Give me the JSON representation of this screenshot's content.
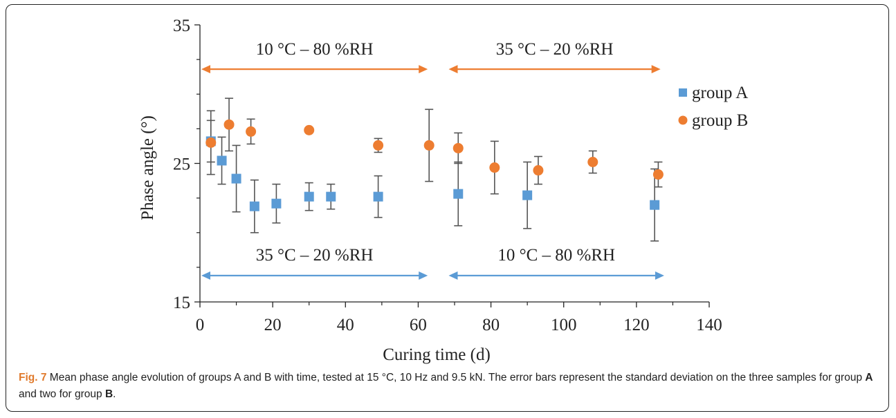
{
  "chart_data": {
    "type": "scatter",
    "xlabel": "Curing time (d)",
    "ylabel": "Phase angle (°)",
    "xlim": [
      0,
      140
    ],
    "ylim": [
      15,
      35
    ],
    "x_ticks": [
      "0",
      "20",
      "40",
      "60",
      "80",
      "100",
      "120",
      "140"
    ],
    "y_ticks": [
      "15",
      "25",
      "35"
    ],
    "grid": false,
    "legend_position": "right",
    "series": [
      {
        "name": "group A",
        "color": "#5b9bd5",
        "marker": "square",
        "x": [
          3,
          6,
          10,
          15,
          21,
          30,
          36,
          49,
          71,
          90,
          125
        ],
        "y": [
          26.6,
          25.2,
          23.9,
          21.9,
          22.1,
          22.6,
          22.6,
          22.6,
          22.8,
          22.7,
          22.0
        ],
        "error": [
          1.5,
          1.7,
          2.4,
          1.9,
          1.4,
          1.0,
          0.9,
          1.5,
          2.3,
          2.4,
          2.6
        ]
      },
      {
        "name": "group B",
        "color": "#ed7d31",
        "marker": "circle",
        "x": [
          3,
          8,
          14,
          30,
          49,
          63,
          71,
          81,
          93,
          108,
          126
        ],
        "y": [
          26.5,
          27.8,
          27.3,
          27.4,
          26.3,
          26.3,
          26.1,
          24.7,
          24.5,
          25.1,
          24.2
        ],
        "error": [
          2.3,
          1.9,
          0.9,
          0.0,
          0.5,
          2.6,
          1.1,
          1.9,
          1.0,
          0.8,
          0.9
        ]
      }
    ],
    "annotations": [
      {
        "text": "10 °C – 80 %RH",
        "color": "#ed7d31",
        "x_start": 0,
        "x_end": 63,
        "y": 31.8
      },
      {
        "text": "35 °C – 20 %RH",
        "color": "#ed7d31",
        "x_start": 68,
        "x_end": 127,
        "y": 31.8
      },
      {
        "text": "35 °C – 20 %RH",
        "color": "#5b9bd5",
        "x_start": 0,
        "x_end": 63,
        "y": 16.9
      },
      {
        "text": "10 °C – 80 %RH",
        "color": "#5b9bd5",
        "x_start": 68,
        "x_end": 128,
        "y": 16.9
      }
    ]
  },
  "caption": {
    "label": "Fig. 7",
    "text_part1": " Mean phase angle evolution of groups A and B with time, tested at 15 °C, 10 Hz and 9.5 kN. The error bars represent the standard deviation on the three samples for group ",
    "group_a": "A",
    "text_part2": " and two for group ",
    "group_b": "B",
    "text_end": "."
  }
}
